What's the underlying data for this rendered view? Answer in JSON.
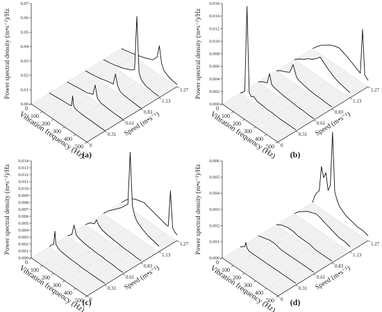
{
  "chart_data": [
    {
      "type": "line",
      "panel_label": "(a)",
      "zlabel": "Power spectral density (m•s⁻²)/Hz",
      "xlabel": "Vibration frequency (Hz)",
      "ylabel": "Speed (m•s⁻¹)",
      "x_ticks": [
        "0",
        "100",
        "200",
        "300",
        "400",
        "500"
      ],
      "y_ticks": [
        "0",
        "0.31",
        "0.61",
        "0.83",
        "1.13",
        "1.27"
      ],
      "z_ticks": [
        "0.00",
        "0.01",
        "0.02",
        "0.03",
        "0.04",
        "0.05",
        "0.06",
        "0.07"
      ],
      "xlim": [
        0,
        500
      ],
      "zlim": [
        0,
        0.07
      ],
      "speeds": [
        0.31,
        0.61,
        0.83,
        1.13,
        1.27
      ],
      "series": [
        {
          "x": [
            0,
            60,
            100,
            140,
            180,
            200,
            210,
            220,
            240,
            260,
            300,
            340,
            380,
            420,
            460,
            500
          ],
          "values": [
            0.0,
            0.0004,
            0.0008,
            0.001,
            0.0012,
            0.0016,
            0.009,
            0.0022,
            0.0012,
            0.0009,
            0.0007,
            0.0006,
            0.0005,
            0.0004,
            0.0003,
            0.0003
          ]
        },
        {
          "x": [
            0,
            60,
            100,
            140,
            180,
            210,
            230,
            250,
            270,
            300,
            340,
            380,
            420,
            460,
            500
          ],
          "values": [
            0.0,
            0.0005,
            0.001,
            0.0014,
            0.0018,
            0.003,
            0.0035,
            0.011,
            0.003,
            0.0012,
            0.0009,
            0.0007,
            0.0005,
            0.0004,
            0.0003
          ]
        },
        {
          "x": [
            0,
            60,
            100,
            140,
            180,
            220,
            250,
            270,
            290,
            310,
            340,
            380,
            420,
            460,
            500
          ],
          "values": [
            0.0,
            0.0006,
            0.0012,
            0.0018,
            0.0028,
            0.0035,
            0.004,
            0.012,
            0.005,
            0.0022,
            0.0014,
            0.001,
            0.0008,
            0.0006,
            0.0005
          ]
        },
        {
          "x": [
            0,
            60,
            100,
            140,
            180,
            220,
            250,
            280,
            300,
            320,
            340,
            380,
            420,
            460,
            500
          ],
          "values": [
            0.0,
            0.0008,
            0.0015,
            0.0025,
            0.0035,
            0.005,
            0.006,
            0.008,
            0.046,
            0.008,
            0.004,
            0.002,
            0.0014,
            0.001,
            0.0008
          ]
        },
        {
          "x": [
            0,
            60,
            100,
            140,
            180,
            220,
            250,
            280,
            300,
            320,
            340,
            360,
            380,
            420,
            460,
            500
          ],
          "values": [
            0.0,
            0.001,
            0.0018,
            0.0028,
            0.0038,
            0.005,
            0.006,
            0.007,
            0.009,
            0.011,
            0.02,
            0.009,
            0.005,
            0.003,
            0.002,
            0.0015
          ]
        }
      ]
    },
    {
      "type": "line",
      "panel_label": "(b)",
      "zlabel": "Power spectral density (m•s⁻²)/Hz",
      "xlabel": "Vibration frequency (Hz)",
      "ylabel": "Speed (m•s⁻¹)",
      "x_ticks": [
        "0",
        "100",
        "200",
        "300",
        "400",
        "500"
      ],
      "y_ticks": [
        "0",
        "0.31",
        "0.61",
        "0.83",
        "1.13",
        "1.27"
      ],
      "z_ticks": [
        "0.000",
        "0.002",
        "0.004",
        "0.006",
        "0.008",
        "0.010",
        "0.012",
        "0.014",
        "0.016"
      ],
      "xlim": [
        0,
        500
      ],
      "zlim": [
        0,
        0.016
      ],
      "speeds": [
        0.31,
        0.61,
        0.83,
        1.13,
        1.27
      ],
      "series": [
        {
          "x": [
            0,
            20,
            40,
            60,
            80,
            100,
            120,
            150,
            200,
            250,
            300,
            350,
            400,
            450,
            500
          ],
          "values": [
            0.0,
            0.0003,
            0.0008,
            0.0145,
            0.001,
            0.0006,
            0.0009,
            0.0005,
            0.0004,
            0.0003,
            0.0003,
            0.0002,
            0.0002,
            0.0002,
            0.0002
          ]
        },
        {
          "x": [
            0,
            40,
            80,
            100,
            120,
            150,
            200,
            250,
            300,
            350,
            400,
            450,
            500
          ],
          "values": [
            0.0,
            0.0005,
            0.0008,
            0.0025,
            0.001,
            0.0008,
            0.0006,
            0.0005,
            0.0004,
            0.0003,
            0.0003,
            0.0002,
            0.0002
          ]
        },
        {
          "x": [
            0,
            40,
            80,
            120,
            150,
            180,
            200,
            250,
            300,
            350,
            400,
            450,
            500
          ],
          "values": [
            0.0,
            0.0005,
            0.0008,
            0.0012,
            0.0028,
            0.0012,
            0.0009,
            0.0007,
            0.0005,
            0.0004,
            0.0004,
            0.0003,
            0.0003
          ]
        },
        {
          "x": [
            0,
            40,
            80,
            120,
            160,
            200,
            230,
            260,
            300,
            350,
            400,
            450,
            500
          ],
          "values": [
            0.0,
            0.0006,
            0.001,
            0.0016,
            0.002,
            0.0026,
            0.0032,
            0.0028,
            0.0022,
            0.0016,
            0.0012,
            0.001,
            0.0008
          ]
        },
        {
          "x": [
            0,
            40,
            80,
            120,
            160,
            200,
            240,
            280,
            320,
            360,
            400,
            430,
            450,
            470,
            500
          ],
          "values": [
            0.0,
            0.0008,
            0.0015,
            0.002,
            0.0025,
            0.0028,
            0.003,
            0.0027,
            0.0024,
            0.002,
            0.0016,
            0.0013,
            0.0085,
            0.0015,
            0.001
          ]
        }
      ]
    },
    {
      "type": "line",
      "panel_label": "(c)",
      "zlabel": "Power spectral density (m•s⁻²)/Hz",
      "xlabel": "Vibration frequency (Hz)",
      "ylabel": "Speed (m•s⁻¹)",
      "x_ticks": [
        "0",
        "100",
        "200",
        "300",
        "400",
        "500"
      ],
      "y_ticks": [
        "0",
        "0.31",
        "0.61",
        "0.83",
        "1.13",
        "1.27"
      ],
      "z_ticks": [
        "0.000",
        "0.001",
        "0.002",
        "0.003",
        "0.004",
        "0.005",
        "0.006",
        "0.007",
        "0.008",
        "0.009",
        "0.010",
        "0.011",
        "0.012",
        "0.013",
        "0.014"
      ],
      "xlim": [
        0,
        500
      ],
      "zlim": [
        0,
        0.014
      ],
      "speeds": [
        0.31,
        0.61,
        0.83,
        1.13,
        1.27
      ],
      "series": [
        {
          "x": [
            0,
            20,
            40,
            50,
            60,
            80,
            100,
            150,
            200,
            250,
            300,
            350,
            400,
            450,
            500
          ],
          "values": [
            0.0,
            0.0005,
            0.0008,
            0.0028,
            0.001,
            0.0007,
            0.0005,
            0.0004,
            0.0003,
            0.0003,
            0.0002,
            0.0002,
            0.0002,
            0.0002,
            0.0002
          ]
        },
        {
          "x": [
            0,
            40,
            60,
            80,
            100,
            150,
            200,
            250,
            300,
            350,
            400,
            450,
            500
          ],
          "values": [
            0.0,
            0.0006,
            0.0022,
            0.001,
            0.0008,
            0.0006,
            0.0005,
            0.0004,
            0.0004,
            0.0003,
            0.0003,
            0.0002,
            0.0002
          ]
        },
        {
          "x": [
            0,
            40,
            80,
            100,
            120,
            150,
            200,
            250,
            300,
            350,
            400,
            450,
            500
          ],
          "values": [
            0.0,
            0.0007,
            0.001,
            0.0018,
            0.0012,
            0.0009,
            0.0007,
            0.0006,
            0.0005,
            0.0004,
            0.0004,
            0.0003,
            0.0003
          ]
        },
        {
          "x": [
            0,
            40,
            80,
            120,
            160,
            200,
            220,
            240,
            260,
            280,
            300,
            350,
            400,
            450,
            500
          ],
          "values": [
            0.0,
            0.0008,
            0.0014,
            0.002,
            0.0026,
            0.0034,
            0.0038,
            0.0115,
            0.004,
            0.0028,
            0.0022,
            0.0016,
            0.0012,
            0.001,
            0.0008
          ]
        },
        {
          "x": [
            0,
            40,
            80,
            120,
            160,
            200,
            240,
            280,
            320,
            360,
            400,
            420,
            440,
            460,
            480,
            500
          ],
          "values": [
            0.0,
            0.0008,
            0.0014,
            0.0018,
            0.002,
            0.0022,
            0.002,
            0.0018,
            0.0016,
            0.0014,
            0.0012,
            0.0012,
            0.0065,
            0.0014,
            0.001,
            0.0008
          ]
        }
      ]
    },
    {
      "type": "line",
      "panel_label": "(d)",
      "zlabel": "Power spectral density (m•s⁻²)/Hz",
      "xlabel": "Vibration frequency (Hz)",
      "ylabel": "Speed (m•s⁻¹)",
      "x_ticks": [
        "0",
        "100",
        "200",
        "300",
        "400",
        "500"
      ],
      "y_ticks": [
        "0",
        "0.31",
        "0.61",
        "0.83",
        "1.13",
        "1.27"
      ],
      "z_ticks": [
        "0.000",
        "0.001",
        "0.002",
        "0.003",
        "0.004",
        "0.005",
        "0.006"
      ],
      "xlim": [
        0,
        500
      ],
      "zlim": [
        0,
        0.006
      ],
      "speeds": [
        0.31,
        0.61,
        0.83,
        1.13,
        1.27
      ],
      "series": [
        {
          "x": [
            0,
            20,
            40,
            50,
            60,
            80,
            100,
            150,
            200,
            250,
            300,
            350,
            400,
            450,
            500
          ],
          "values": [
            0.0,
            0.0001,
            0.0002,
            0.0005,
            0.0002,
            0.0001,
            0.0001,
            0.0001,
            0.0001,
            0.0001,
            0.0001,
            0.0001,
            0.0001,
            0.0001,
            0.0001
          ]
        },
        {
          "x": [
            0,
            50,
            100,
            150,
            200,
            250,
            300,
            350,
            400,
            450,
            500
          ],
          "values": [
            0.0,
            0.0001,
            0.0002,
            0.0002,
            0.0001,
            0.0001,
            0.0001,
            0.0001,
            0.0001,
            0.0001,
            0.0001
          ]
        },
        {
          "x": [
            0,
            50,
            100,
            150,
            200,
            250,
            300,
            350,
            400,
            450,
            500
          ],
          "values": [
            0.0,
            0.0002,
            0.0003,
            0.0003,
            0.0002,
            0.0002,
            0.0002,
            0.0001,
            0.0001,
            0.0001,
            0.0001
          ]
        },
        {
          "x": [
            0,
            40,
            80,
            120,
            160,
            200,
            240,
            280,
            320,
            360,
            400,
            450,
            500
          ],
          "values": [
            0.0,
            0.0003,
            0.0005,
            0.0007,
            0.0008,
            0.0009,
            0.0008,
            0.0007,
            0.0006,
            0.0005,
            0.0004,
            0.0004,
            0.0003
          ]
        },
        {
          "x": [
            0,
            20,
            40,
            60,
            80,
            100,
            120,
            140,
            160,
            180,
            200,
            220,
            240,
            260,
            300,
            350,
            400,
            450,
            500
          ],
          "values": [
            0.0,
            0.0005,
            0.0008,
            0.001,
            0.0026,
            0.002,
            0.0024,
            0.0014,
            0.0018,
            0.0052,
            0.0016,
            0.0012,
            0.0009,
            0.0008,
            0.0006,
            0.0005,
            0.0004,
            0.0004,
            0.0003
          ]
        }
      ]
    }
  ]
}
